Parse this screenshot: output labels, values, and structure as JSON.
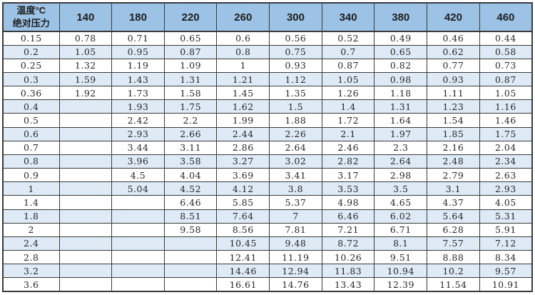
{
  "colors": {
    "header_bg": "#9CC2E5",
    "band_bg": "#DEEAF6",
    "row_bg": "#FFFFFF",
    "border": "#3B3B3B",
    "text": "#262626"
  },
  "table": {
    "corner": {
      "line1": "温度°C",
      "line2": "绝对压力"
    }
  },
  "chart_data": {
    "type": "table",
    "title": "",
    "corner_label_top": "温度°C",
    "corner_label_bottom": "绝对压力",
    "columns": [
      140,
      180,
      220,
      260,
      300,
      340,
      380,
      420,
      460
    ],
    "rows": [
      {
        "pressure": 0.15,
        "values": [
          0.78,
          0.71,
          0.65,
          0.6,
          0.56,
          0.52,
          0.49,
          0.46,
          0.44
        ]
      },
      {
        "pressure": 0.2,
        "values": [
          1.05,
          0.95,
          0.87,
          0.8,
          0.75,
          0.7,
          0.65,
          0.62,
          0.58
        ]
      },
      {
        "pressure": 0.25,
        "values": [
          1.32,
          1.19,
          1.09,
          1,
          0.93,
          0.87,
          0.82,
          0.77,
          0.73
        ]
      },
      {
        "pressure": 0.3,
        "values": [
          1.59,
          1.43,
          1.31,
          1.21,
          1.12,
          1.05,
          0.98,
          0.93,
          0.87
        ]
      },
      {
        "pressure": 0.36,
        "values": [
          1.92,
          1.73,
          1.58,
          1.45,
          1.35,
          1.26,
          1.18,
          1.11,
          1.05
        ]
      },
      {
        "pressure": 0.4,
        "values": [
          null,
          1.93,
          1.75,
          1.62,
          1.5,
          1.4,
          1.31,
          1.23,
          1.16
        ]
      },
      {
        "pressure": 0.5,
        "values": [
          null,
          2.42,
          2.2,
          1.99,
          1.88,
          1.72,
          1.64,
          1.54,
          1.46
        ]
      },
      {
        "pressure": 0.6,
        "values": [
          null,
          2.93,
          2.66,
          2.44,
          2.26,
          2.1,
          1.97,
          1.85,
          1.75
        ]
      },
      {
        "pressure": 0.7,
        "values": [
          null,
          3.44,
          3.11,
          2.86,
          2.64,
          2.46,
          2.3,
          2.16,
          2.04
        ]
      },
      {
        "pressure": 0.8,
        "values": [
          null,
          3.96,
          3.58,
          3.27,
          3.02,
          2.82,
          2.64,
          2.48,
          2.34
        ]
      },
      {
        "pressure": 0.9,
        "values": [
          null,
          4.5,
          4.04,
          3.69,
          3.41,
          3.17,
          2.98,
          2.79,
          2.63
        ]
      },
      {
        "pressure": 1,
        "values": [
          null,
          5.04,
          4.52,
          4.12,
          3.8,
          3.53,
          3.5,
          3.1,
          2.93
        ]
      },
      {
        "pressure": 1.4,
        "values": [
          null,
          null,
          6.46,
          5.85,
          5.37,
          4.98,
          4.65,
          4.37,
          4.05
        ]
      },
      {
        "pressure": 1.8,
        "values": [
          null,
          null,
          8.51,
          7.64,
          7,
          6.46,
          6.02,
          5.64,
          5.31
        ]
      },
      {
        "pressure": 2,
        "values": [
          null,
          null,
          9.58,
          8.56,
          7.81,
          7.21,
          6.71,
          6.28,
          5.91
        ]
      },
      {
        "pressure": 2.4,
        "values": [
          null,
          null,
          null,
          10.45,
          9.48,
          8.72,
          8.1,
          7.57,
          7.12
        ]
      },
      {
        "pressure": 2.8,
        "values": [
          null,
          null,
          null,
          12.41,
          11.19,
          10.26,
          9.51,
          8.88,
          8.34
        ]
      },
      {
        "pressure": 3.2,
        "values": [
          null,
          null,
          null,
          14.46,
          12.94,
          11.83,
          10.94,
          10.2,
          9.57
        ]
      },
      {
        "pressure": 3.6,
        "values": [
          null,
          null,
          null,
          16.61,
          14.76,
          13.43,
          12.39,
          11.54,
          10.91
        ]
      }
    ]
  }
}
